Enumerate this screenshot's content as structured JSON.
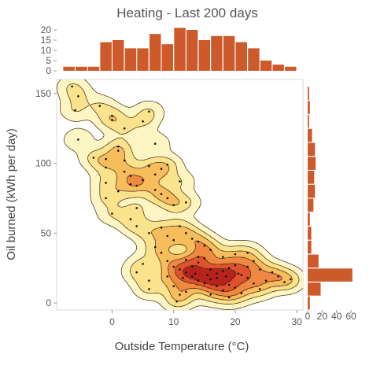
{
  "chart_data": {
    "type": "scatter",
    "title": "Heating - Last 200 days",
    "xlabel": "Outside Temperature (°C)",
    "ylabel": "Oil burned (kWh per day)",
    "xlim": [
      -9,
      31
    ],
    "ylim": [
      -5,
      160
    ],
    "x_ticks": [
      0,
      10,
      20,
      30
    ],
    "y_ticks": [
      0,
      50,
      100,
      150
    ],
    "bar_color": "#cc5a2a",
    "contour_colors": [
      "#fdf4c0",
      "#fbe08a",
      "#f7b95a",
      "#ee8640",
      "#dd4f2a",
      "#b4201a"
    ],
    "grid": false,
    "marginal_x_histogram": {
      "yticks": [
        0,
        5,
        10,
        15,
        20
      ],
      "bins": [
        {
          "x0": -8,
          "x1": -6,
          "count": 2
        },
        {
          "x0": -6,
          "x1": -4,
          "count": 2
        },
        {
          "x0": -4,
          "x1": -2,
          "count": 2
        },
        {
          "x0": -2,
          "x1": 0,
          "count": 14
        },
        {
          "x0": 0,
          "x1": 2,
          "count": 15
        },
        {
          "x0": 2,
          "x1": 4,
          "count": 11
        },
        {
          "x0": 4,
          "x1": 6,
          "count": 11
        },
        {
          "x0": 6,
          "x1": 8,
          "count": 18
        },
        {
          "x0": 8,
          "x1": 10,
          "count": 13
        },
        {
          "x0": 10,
          "x1": 12,
          "count": 21
        },
        {
          "x0": 12,
          "x1": 14,
          "count": 20
        },
        {
          "x0": 14,
          "x1": 16,
          "count": 15
        },
        {
          "x0": 16,
          "x1": 18,
          "count": 17
        },
        {
          "x0": 18,
          "x1": 20,
          "count": 17
        },
        {
          "x0": 20,
          "x1": 22,
          "count": 14
        },
        {
          "x0": 22,
          "x1": 24,
          "count": 11
        },
        {
          "x0": 24,
          "x1": 26,
          "count": 5
        },
        {
          "x0": 26,
          "x1": 28,
          "count": 3
        },
        {
          "x0": 28,
          "x1": 30,
          "count": 2
        }
      ]
    },
    "marginal_y_histogram": {
      "xticks": [
        0,
        20,
        40,
        60
      ],
      "bins": [
        {
          "y0": -5,
          "y1": 5,
          "count": 3
        },
        {
          "y0": 5,
          "y1": 15,
          "count": 18
        },
        {
          "y0": 15,
          "y1": 25,
          "count": 62
        },
        {
          "y0": 25,
          "y1": 35,
          "count": 15
        },
        {
          "y0": 35,
          "y1": 45,
          "count": 5
        },
        {
          "y0": 45,
          "y1": 55,
          "count": 5
        },
        {
          "y0": 55,
          "y1": 65,
          "count": 3
        },
        {
          "y0": 65,
          "y1": 75,
          "count": 8
        },
        {
          "y0": 75,
          "y1": 85,
          "count": 10
        },
        {
          "y0": 85,
          "y1": 95,
          "count": 9
        },
        {
          "y0": 95,
          "y1": 105,
          "count": 11
        },
        {
          "y0": 105,
          "y1": 115,
          "count": 10
        },
        {
          "y0": 115,
          "y1": 125,
          "count": 6
        },
        {
          "y0": 125,
          "y1": 135,
          "count": 2
        },
        {
          "y0": 135,
          "y1": 145,
          "count": 3
        },
        {
          "y0": 145,
          "y1": 155,
          "count": 2
        }
      ]
    },
    "points": [
      [
        -6.5,
        155
      ],
      [
        -5.5,
        148
      ],
      [
        -6,
        138
      ],
      [
        -5.5,
        117
      ],
      [
        -2,
        141
      ],
      [
        0,
        134
      ],
      [
        0,
        131
      ],
      [
        2,
        125
      ],
      [
        6,
        137
      ],
      [
        5,
        130
      ],
      [
        7,
        114
      ],
      [
        -3,
        104
      ],
      [
        -1,
        103
      ],
      [
        -1,
        97
      ],
      [
        1,
        112
      ],
      [
        1,
        109
      ],
      [
        2,
        102
      ],
      [
        2,
        94
      ],
      [
        3,
        91
      ],
      [
        -1,
        86
      ],
      [
        3,
        85
      ],
      [
        4,
        84
      ],
      [
        5,
        88
      ],
      [
        7,
        92
      ],
      [
        8,
        96
      ],
      [
        9,
        99
      ],
      [
        6,
        98
      ],
      [
        8,
        78
      ],
      [
        9,
        75
      ],
      [
        7,
        81
      ],
      [
        10,
        70
      ],
      [
        11,
        87
      ],
      [
        12,
        72
      ],
      [
        1,
        80
      ],
      [
        -1,
        75
      ],
      [
        0,
        64
      ],
      [
        4,
        68
      ],
      [
        3,
        60
      ],
      [
        4,
        55
      ],
      [
        6,
        50
      ],
      [
        8,
        54
      ],
      [
        9,
        48
      ],
      [
        10,
        45
      ],
      [
        11,
        55
      ],
      [
        12,
        50
      ],
      [
        13,
        46
      ],
      [
        14,
        44
      ],
      [
        15,
        41
      ],
      [
        16,
        38
      ],
      [
        7,
        40
      ],
      [
        8,
        36
      ],
      [
        9,
        30
      ],
      [
        10,
        26
      ],
      [
        11,
        24
      ],
      [
        12,
        22
      ],
      [
        13,
        19
      ],
      [
        14,
        16
      ],
      [
        15,
        14
      ],
      [
        16,
        17
      ],
      [
        17,
        21
      ],
      [
        18,
        23
      ],
      [
        19,
        25
      ],
      [
        20,
        27
      ],
      [
        21,
        20
      ],
      [
        22,
        18
      ],
      [
        23,
        14
      ],
      [
        24,
        10
      ],
      [
        25,
        16
      ],
      [
        26,
        22
      ],
      [
        27,
        19
      ],
      [
        28,
        15
      ],
      [
        29,
        17
      ],
      [
        10,
        12
      ],
      [
        11,
        6
      ],
      [
        12,
        8
      ],
      [
        13,
        26
      ],
      [
        14,
        29
      ],
      [
        15,
        32
      ],
      [
        16,
        24
      ],
      [
        17,
        12
      ],
      [
        18,
        9
      ],
      [
        19,
        13
      ],
      [
        20,
        11
      ],
      [
        21,
        7
      ],
      [
        22,
        26
      ],
      [
        23,
        30
      ],
      [
        4,
        22
      ],
      [
        5,
        28
      ],
      [
        6,
        16
      ],
      [
        6,
        10
      ],
      [
        9,
        19
      ],
      [
        12,
        31
      ],
      [
        16,
        6
      ],
      [
        19,
        4
      ],
      [
        10.5,
        1
      ],
      [
        14,
        33
      ],
      [
        18,
        33
      ],
      [
        20,
        35
      ],
      [
        22,
        36
      ],
      [
        24,
        24
      ],
      [
        17,
        18
      ],
      [
        13.5,
        21
      ],
      [
        15.5,
        20
      ],
      [
        18.5,
        19
      ],
      [
        20.5,
        21
      ],
      [
        11.5,
        18
      ]
    ]
  }
}
